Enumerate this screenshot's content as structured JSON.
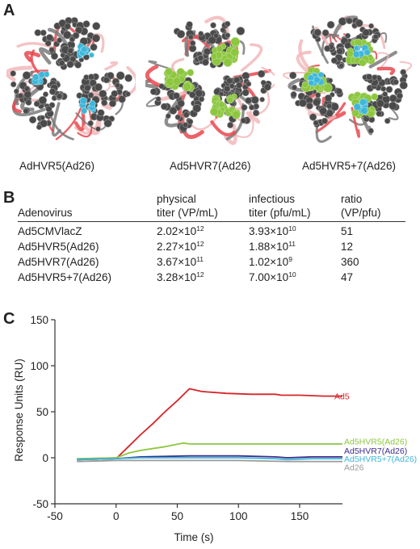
{
  "panels": {
    "a": "A",
    "b": "B",
    "c": "C"
  },
  "structures": [
    {
      "label": "AdHVR5(Ad26)"
    },
    {
      "label": "Ad5HVR7(Ad26)"
    },
    {
      "label": "Ad5HVR5+7(Ad26)"
    }
  ],
  "colors": {
    "ad5": "#d62528",
    "hvr5": "#8dc63f",
    "hvr7": "#3d2d8c",
    "hvr57": "#3fb6d9",
    "ad26": "#9a9a9a",
    "trimer_red": "#e8484e",
    "trimer_pink": "#f2b8bb",
    "trimer_grey": "#7a7a7a",
    "atoms": "#4a4a4a"
  },
  "table": {
    "headers": {
      "adenovirus": "Adenovirus",
      "physical_1": "physical",
      "physical_2": "titer (VP/mL)",
      "infectious_1": "infectious",
      "infectious_2": "titer (pfu/mL)",
      "ratio_1": "ratio",
      "ratio_2": "(VP/pfu)"
    },
    "rows": [
      {
        "name": "Ad5CMVlacZ",
        "phys_m": "2.02×10",
        "phys_e": "12",
        "inf_m": "3.93×10",
        "inf_e": "10",
        "ratio": "51"
      },
      {
        "name": "Ad5HVR5(Ad26)",
        "phys_m": "2.27×10",
        "phys_e": "12",
        "inf_m": "1.88×10",
        "inf_e": "11",
        "ratio": "12"
      },
      {
        "name": "Ad5HVR7(Ad26)",
        "phys_m": "3.67×10",
        "phys_e": "11",
        "inf_m": "1.02×10",
        "inf_e": "9",
        "ratio": "360"
      },
      {
        "name": "Ad5HVR5+7(Ad26)",
        "phys_m": "3.28×10",
        "phys_e": "12",
        "inf_m": "7.00×10",
        "inf_e": "10",
        "ratio": "47"
      }
    ]
  },
  "chart_data": {
    "type": "line",
    "xlabel": "Time (s)",
    "ylabel": "Response Units (RU)",
    "xlim": [
      -50,
      185
    ],
    "ylim": [
      -50,
      150
    ],
    "x_ticks": [
      -50,
      0,
      50,
      100,
      150
    ],
    "y_ticks": [
      -50,
      0,
      50,
      100,
      150
    ],
    "grid": false,
    "series": [
      {
        "name": "Ad5",
        "color": "#d62528",
        "x": [
          -32,
          0,
          10,
          20,
          30,
          40,
          50,
          60,
          70,
          90,
          110,
          130,
          135,
          150,
          170,
          185
        ],
        "y": [
          -2,
          -1,
          12,
          25,
          37,
          50,
          62,
          75,
          72,
          70,
          69,
          69,
          68,
          68,
          67,
          67
        ]
      },
      {
        "name": "Ad5HVR5(Ad26)",
        "color": "#8dc63f",
        "x": [
          -32,
          0,
          10,
          20,
          40,
          55,
          60,
          70,
          100,
          130,
          150,
          185
        ],
        "y": [
          -1,
          0,
          5,
          8,
          12,
          16,
          15,
          15,
          15,
          15,
          15,
          15
        ]
      },
      {
        "name": "Ad5HVR7(Ad26)",
        "color": "#3d2d8c",
        "x": [
          -32,
          0,
          20,
          60,
          100,
          130,
          140,
          160,
          185
        ],
        "y": [
          -2,
          -1,
          1,
          2,
          2,
          1,
          0,
          1,
          1
        ]
      },
      {
        "name": "Ad5HVR5+7(Ad26)",
        "color": "#3fb6d9",
        "x": [
          -32,
          0,
          20,
          60,
          100,
          130,
          140,
          160,
          185
        ],
        "y": [
          -2,
          -1,
          0,
          0,
          0,
          -1,
          -2,
          -1,
          -1
        ]
      },
      {
        "name": "Ad26",
        "color": "#9a9a9a",
        "x": [
          -32,
          0,
          20,
          60,
          100,
          140,
          160,
          185
        ],
        "y": [
          -4,
          -3,
          -3,
          -3,
          -3,
          -4,
          -4,
          -4
        ]
      }
    ],
    "annotations": [
      "Ad5",
      "Ad5HVR5(Ad26)",
      "Ad5HVR7(Ad26)",
      "Ad5HVR5+7(Ad26)",
      "Ad26"
    ]
  }
}
